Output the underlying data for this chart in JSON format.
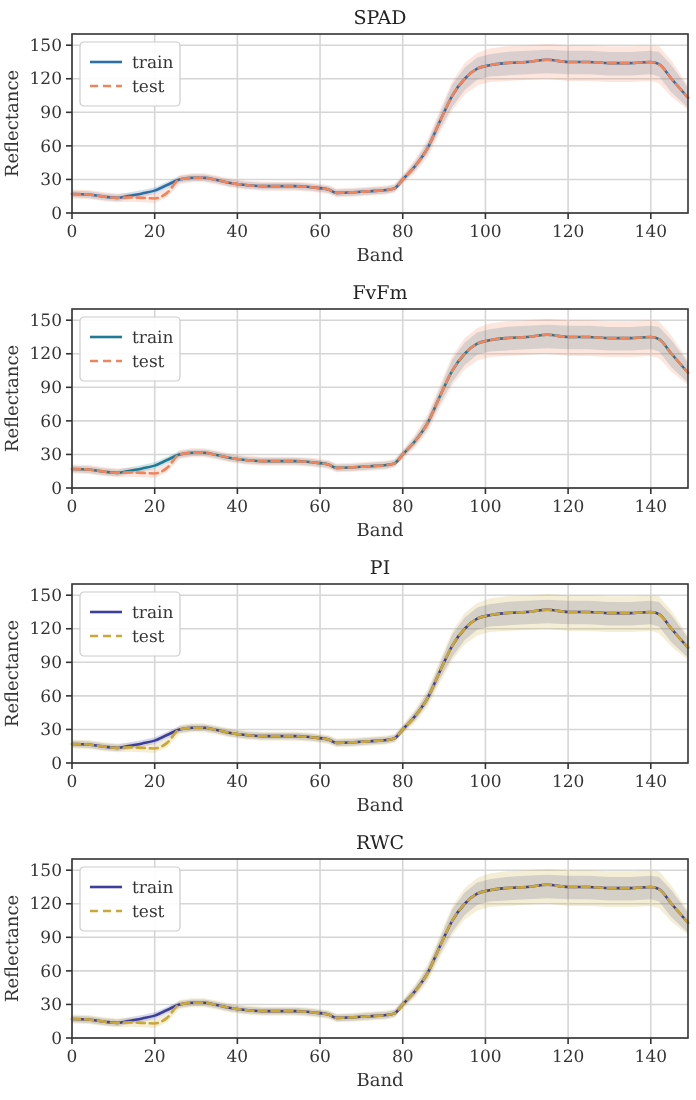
{
  "chart_data": [
    {
      "type": "line",
      "title": "SPAD",
      "xlabel": "Band",
      "ylabel": "Reflectance",
      "xlim": [
        0,
        149
      ],
      "ylim": [
        0,
        160
      ],
      "xticks": [
        0,
        20,
        40,
        60,
        80,
        100,
        120,
        140
      ],
      "yticks": [
        0,
        30,
        60,
        90,
        120,
        150
      ],
      "grid": true,
      "legend": "top left",
      "x": [
        0,
        4,
        8,
        11,
        14,
        17,
        20,
        23,
        26,
        29,
        32,
        35,
        38,
        42,
        46,
        50,
        54,
        58,
        62,
        64,
        68,
        72,
        76,
        78,
        80,
        83,
        86,
        89,
        92,
        95,
        98,
        101,
        105,
        110,
        115,
        120,
        125,
        130,
        135,
        140,
        142,
        145,
        149
      ],
      "series": [
        {
          "name": "train",
          "color": "#2b6fa6",
          "line_style": "solid",
          "values": [
            17,
            16.5,
            14.5,
            13.5,
            15.5,
            17.5,
            20,
            25,
            30,
            31.5,
            31.5,
            29.5,
            27,
            25,
            24,
            24,
            24,
            23,
            21,
            18,
            18.5,
            19.5,
            20.5,
            22,
            30,
            42,
            58,
            82,
            105,
            120,
            129,
            132,
            134,
            135,
            137,
            135,
            135,
            134,
            134,
            135,
            133,
            120,
            103
          ],
          "lower": [
            14,
            13.5,
            11.5,
            10.5,
            12.5,
            14.5,
            17,
            22,
            27,
            28.5,
            28.5,
            26.5,
            24,
            22,
            21,
            21,
            21,
            20,
            18,
            15,
            15.5,
            16.5,
            17.5,
            19,
            27,
            38,
            53,
            75,
            95,
            110,
            119,
            122,
            123,
            124,
            125,
            124,
            124,
            123,
            123,
            124,
            122,
            108,
            94
          ],
          "upper": [
            20,
            19.5,
            17.5,
            16.5,
            18.5,
            20.5,
            23,
            28,
            33,
            34.5,
            34.5,
            32.5,
            30,
            28,
            27,
            27,
            27,
            26,
            24,
            21,
            21.5,
            22.5,
            23.5,
            25,
            33,
            46,
            63,
            89,
            115,
            130,
            139,
            142,
            144,
            145,
            146,
            145,
            145,
            144,
            144,
            145,
            144,
            132,
            112
          ]
        },
        {
          "name": "test",
          "color": "#f0845c",
          "line_style": "dashed",
          "values": [
            17,
            16.5,
            14.5,
            13.5,
            14,
            13.5,
            13,
            18,
            30,
            31.5,
            31.5,
            29.5,
            27,
            25,
            24,
            24,
            24,
            23,
            21,
            18,
            18.5,
            19.5,
            20.5,
            22,
            30,
            42,
            58,
            82,
            105,
            120,
            129,
            132,
            134,
            135,
            137,
            135,
            135,
            134,
            134,
            135,
            133,
            120,
            103
          ],
          "lower": [
            13,
            12.5,
            10.5,
            9.5,
            10,
            9.5,
            9,
            14,
            26,
            27.5,
            27.5,
            25.5,
            23,
            21,
            20,
            20,
            20,
            19,
            17,
            14,
            14.5,
            15.5,
            16.5,
            18,
            26,
            36,
            50,
            72,
            92,
            106,
            114,
            117,
            118,
            119,
            120,
            118,
            118,
            117,
            117,
            118,
            116,
            104,
            92
          ],
          "upper": [
            21,
            20.5,
            18.5,
            17.5,
            18,
            17.5,
            17,
            22,
            34,
            35.5,
            35.5,
            33.5,
            31,
            29,
            28,
            28,
            28,
            27,
            25,
            22,
            22.5,
            23.5,
            24.5,
            26,
            34,
            48,
            66,
            92,
            118,
            134,
            143,
            147,
            149,
            150,
            151,
            150,
            150,
            149,
            149,
            150,
            149,
            136,
            114
          ]
        }
      ]
    },
    {
      "type": "line",
      "title": "FvFm",
      "xlabel": "Band",
      "ylabel": "Reflectance",
      "xlim": [
        0,
        149
      ],
      "ylim": [
        0,
        160
      ],
      "xticks": [
        0,
        20,
        40,
        60,
        80,
        100,
        120,
        140
      ],
      "yticks": [
        0,
        30,
        60,
        90,
        120,
        150
      ],
      "grid": true,
      "legend": "top left",
      "x": [
        0,
        4,
        8,
        11,
        14,
        17,
        20,
        23,
        26,
        29,
        32,
        35,
        38,
        42,
        46,
        50,
        54,
        58,
        62,
        64,
        68,
        72,
        76,
        78,
        80,
        83,
        86,
        89,
        92,
        95,
        98,
        101,
        105,
        110,
        115,
        120,
        125,
        130,
        135,
        140,
        142,
        145,
        149
      ],
      "series": [
        {
          "name": "train",
          "color": "#1f7a93",
          "line_style": "solid",
          "values": [
            17,
            16.5,
            14.5,
            13.5,
            15.5,
            17.5,
            20,
            25,
            30,
            31.5,
            31.5,
            29.5,
            27,
            25,
            24,
            24,
            24,
            23,
            21,
            18,
            18.5,
            19.5,
            20.5,
            22,
            30,
            42,
            58,
            82,
            105,
            120,
            129,
            132,
            134,
            135,
            137,
            135,
            135,
            134,
            134,
            135,
            133,
            120,
            103
          ],
          "lower": [
            14,
            13.5,
            11.5,
            10.5,
            12.5,
            14.5,
            17,
            22,
            27,
            28.5,
            28.5,
            26.5,
            24,
            22,
            21,
            21,
            21,
            20,
            18,
            15,
            15.5,
            16.5,
            17.5,
            19,
            27,
            38,
            53,
            75,
            95,
            110,
            119,
            122,
            123,
            124,
            125,
            124,
            124,
            123,
            123,
            124,
            122,
            108,
            94
          ],
          "upper": [
            20,
            19.5,
            17.5,
            16.5,
            18.5,
            20.5,
            23,
            28,
            33,
            34.5,
            34.5,
            32.5,
            30,
            28,
            27,
            27,
            27,
            26,
            24,
            21,
            21.5,
            22.5,
            23.5,
            25,
            33,
            46,
            63,
            89,
            115,
            130,
            139,
            142,
            144,
            145,
            146,
            145,
            145,
            144,
            144,
            145,
            144,
            132,
            112
          ]
        },
        {
          "name": "test",
          "color": "#f0845c",
          "line_style": "dashed",
          "values": [
            17,
            16.5,
            14.5,
            13.5,
            14,
            13.5,
            13,
            18,
            30,
            31.5,
            31.5,
            29.5,
            27,
            25,
            24,
            24,
            24,
            23,
            21,
            18,
            18.5,
            19.5,
            20.5,
            22,
            30,
            42,
            58,
            82,
            105,
            120,
            129,
            132,
            134,
            135,
            137,
            135,
            135,
            134,
            134,
            135,
            133,
            120,
            103
          ],
          "lower": [
            13,
            12.5,
            10.5,
            9.5,
            10,
            9.5,
            9,
            14,
            26,
            27.5,
            27.5,
            25.5,
            23,
            21,
            20,
            20,
            20,
            19,
            17,
            14,
            14.5,
            15.5,
            16.5,
            18,
            26,
            36,
            50,
            72,
            92,
            106,
            114,
            117,
            118,
            119,
            120,
            118,
            118,
            117,
            117,
            118,
            116,
            104,
            92
          ],
          "upper": [
            21,
            20.5,
            18.5,
            17.5,
            18,
            17.5,
            17,
            22,
            34,
            35.5,
            35.5,
            33.5,
            31,
            29,
            28,
            28,
            28,
            27,
            25,
            22,
            22.5,
            23.5,
            24.5,
            26,
            34,
            48,
            66,
            92,
            118,
            134,
            143,
            147,
            149,
            150,
            151,
            150,
            150,
            149,
            149,
            150,
            149,
            136,
            114
          ]
        }
      ]
    },
    {
      "type": "line",
      "title": "PI",
      "xlabel": "Band",
      "ylabel": "Reflectance",
      "xlim": [
        0,
        149
      ],
      "ylim": [
        0,
        160
      ],
      "xticks": [
        0,
        20,
        40,
        60,
        80,
        100,
        120,
        140
      ],
      "yticks": [
        0,
        30,
        60,
        90,
        120,
        150
      ],
      "grid": true,
      "legend": "top left",
      "x": [
        0,
        4,
        8,
        11,
        14,
        17,
        20,
        23,
        26,
        29,
        32,
        35,
        38,
        42,
        46,
        50,
        54,
        58,
        62,
        64,
        68,
        72,
        76,
        78,
        80,
        83,
        86,
        89,
        92,
        95,
        98,
        101,
        105,
        110,
        115,
        120,
        125,
        130,
        135,
        140,
        142,
        145,
        149
      ],
      "series": [
        {
          "name": "train",
          "color": "#3c3f9c",
          "line_style": "solid",
          "values": [
            17,
            16.5,
            14.5,
            13.5,
            15.5,
            17.5,
            20,
            25,
            30,
            31.5,
            31.5,
            29.5,
            27,
            25,
            24,
            24,
            24,
            23,
            21,
            18,
            18.5,
            19.5,
            20.5,
            22,
            30,
            42,
            58,
            82,
            105,
            120,
            129,
            132,
            134,
            135,
            137,
            135,
            135,
            134,
            134,
            135,
            133,
            120,
            103
          ],
          "lower": [
            14,
            13.5,
            11.5,
            10.5,
            12.5,
            14.5,
            17,
            22,
            27,
            28.5,
            28.5,
            26.5,
            24,
            22,
            21,
            21,
            21,
            20,
            18,
            15,
            15.5,
            16.5,
            17.5,
            19,
            27,
            38,
            53,
            75,
            95,
            110,
            119,
            122,
            123,
            124,
            125,
            124,
            124,
            123,
            123,
            124,
            122,
            108,
            94
          ],
          "upper": [
            20,
            19.5,
            17.5,
            16.5,
            18.5,
            20.5,
            23,
            28,
            33,
            34.5,
            34.5,
            32.5,
            30,
            28,
            27,
            27,
            27,
            26,
            24,
            21,
            21.5,
            22.5,
            23.5,
            25,
            33,
            46,
            63,
            89,
            115,
            130,
            139,
            142,
            144,
            145,
            146,
            145,
            145,
            144,
            144,
            145,
            144,
            132,
            112
          ]
        },
        {
          "name": "test",
          "color": "#c9a838",
          "line_style": "dashed",
          "values": [
            17,
            16.5,
            14.5,
            13.5,
            14,
            13.5,
            13,
            18,
            30,
            31.5,
            31.5,
            29.5,
            27,
            25,
            24,
            24,
            24,
            23,
            21,
            18,
            18.5,
            19.5,
            20.5,
            22,
            30,
            42,
            58,
            82,
            105,
            120,
            129,
            132,
            134,
            135,
            137,
            135,
            135,
            134,
            134,
            135,
            133,
            120,
            103
          ],
          "lower": [
            13,
            12.5,
            10.5,
            9.5,
            10,
            9.5,
            9,
            14,
            26,
            27.5,
            27.5,
            25.5,
            23,
            21,
            20,
            20,
            20,
            19,
            17,
            14,
            14.5,
            15.5,
            16.5,
            18,
            26,
            36,
            50,
            72,
            92,
            106,
            114,
            117,
            118,
            119,
            120,
            118,
            118,
            117,
            117,
            118,
            116,
            104,
            92
          ],
          "upper": [
            21,
            20.5,
            18.5,
            17.5,
            18,
            17.5,
            17,
            22,
            34,
            35.5,
            35.5,
            33.5,
            31,
            29,
            28,
            28,
            28,
            27,
            25,
            22,
            22.5,
            23.5,
            24.5,
            26,
            34,
            48,
            66,
            92,
            118,
            134,
            143,
            147,
            149,
            150,
            151,
            150,
            150,
            149,
            149,
            150,
            149,
            136,
            114
          ]
        }
      ]
    },
    {
      "type": "line",
      "title": "RWC",
      "xlabel": "Band",
      "ylabel": "Reflectance",
      "xlim": [
        0,
        149
      ],
      "ylim": [
        0,
        160
      ],
      "xticks": [
        0,
        20,
        40,
        60,
        80,
        100,
        120,
        140
      ],
      "yticks": [
        0,
        30,
        60,
        90,
        120,
        150
      ],
      "grid": true,
      "legend": "top left",
      "x": [
        0,
        4,
        8,
        11,
        14,
        17,
        20,
        23,
        26,
        29,
        32,
        35,
        38,
        42,
        46,
        50,
        54,
        58,
        62,
        64,
        68,
        72,
        76,
        78,
        80,
        83,
        86,
        89,
        92,
        95,
        98,
        101,
        105,
        110,
        115,
        120,
        125,
        130,
        135,
        140,
        142,
        145,
        149
      ],
      "series": [
        {
          "name": "train",
          "color": "#3c3f9c",
          "line_style": "solid",
          "values": [
            17,
            16.5,
            14.5,
            13.5,
            15.5,
            17.5,
            20,
            25,
            30,
            31.5,
            31.5,
            29.5,
            27,
            25,
            24,
            24,
            24,
            23,
            21,
            18,
            18.5,
            19.5,
            20.5,
            22,
            30,
            42,
            58,
            82,
            105,
            120,
            129,
            132,
            134,
            135,
            137,
            135,
            135,
            134,
            134,
            135,
            133,
            120,
            103
          ],
          "lower": [
            14,
            13.5,
            11.5,
            10.5,
            12.5,
            14.5,
            17,
            22,
            27,
            28.5,
            28.5,
            26.5,
            24,
            22,
            21,
            21,
            21,
            20,
            18,
            15,
            15.5,
            16.5,
            17.5,
            19,
            27,
            38,
            53,
            75,
            95,
            110,
            119,
            122,
            123,
            124,
            125,
            124,
            124,
            123,
            123,
            124,
            122,
            108,
            94
          ],
          "upper": [
            20,
            19.5,
            17.5,
            16.5,
            18.5,
            20.5,
            23,
            28,
            33,
            34.5,
            34.5,
            32.5,
            30,
            28,
            27,
            27,
            27,
            26,
            24,
            21,
            21.5,
            22.5,
            23.5,
            25,
            33,
            46,
            63,
            89,
            115,
            130,
            139,
            142,
            144,
            145,
            146,
            145,
            145,
            144,
            144,
            145,
            144,
            132,
            112
          ]
        },
        {
          "name": "test",
          "color": "#c9a838",
          "line_style": "dashed",
          "values": [
            17,
            16.5,
            14.5,
            13.5,
            14,
            13.5,
            13,
            18,
            30,
            31.5,
            31.5,
            29.5,
            27,
            25,
            24,
            24,
            24,
            23,
            21,
            18,
            18.5,
            19.5,
            20.5,
            22,
            30,
            42,
            58,
            82,
            105,
            120,
            129,
            132,
            134,
            135,
            137,
            135,
            135,
            134,
            134,
            135,
            133,
            120,
            103
          ],
          "lower": [
            13,
            12.5,
            10.5,
            9.5,
            10,
            9.5,
            9,
            14,
            26,
            27.5,
            27.5,
            25.5,
            23,
            21,
            20,
            20,
            20,
            19,
            17,
            14,
            14.5,
            15.5,
            16.5,
            18,
            26,
            36,
            50,
            72,
            92,
            106,
            114,
            117,
            118,
            119,
            120,
            118,
            118,
            117,
            117,
            118,
            116,
            104,
            92
          ],
          "upper": [
            21,
            20.5,
            18.5,
            17.5,
            18,
            17.5,
            17,
            22,
            34,
            35.5,
            35.5,
            33.5,
            31,
            29,
            28,
            28,
            28,
            27,
            25,
            22,
            22.5,
            23.5,
            24.5,
            26,
            34,
            48,
            66,
            92,
            118,
            134,
            143,
            147,
            149,
            150,
            151,
            150,
            150,
            149,
            149,
            150,
            149,
            136,
            114
          ]
        }
      ]
    }
  ]
}
